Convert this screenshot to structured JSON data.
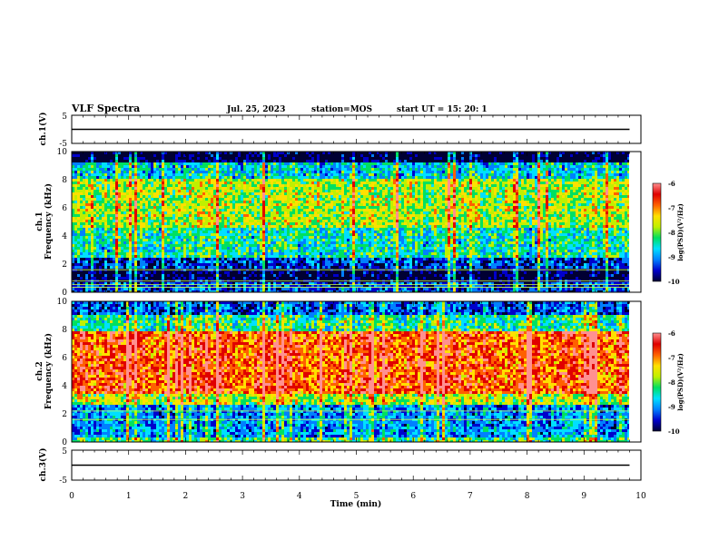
{
  "header": {
    "title": "VLF Spectra",
    "date": "Jul. 25, 2023",
    "station": "station=MOS",
    "start": "start UT =  15: 20: 1"
  },
  "colors": {
    "scale": [
      "#000033",
      "#0000cc",
      "#0080ff",
      "#00e0ff",
      "#00e060",
      "#c0f000",
      "#ffe000",
      "#ff6000",
      "#e00000",
      "#ff9090"
    ]
  },
  "chart_data": [
    {
      "type": "line",
      "ylabel": "ch.1(V)",
      "x": [
        0,
        9.8
      ],
      "y": [
        0,
        0
      ],
      "xlim": [
        0,
        10
      ],
      "ylim": [
        -5,
        5
      ],
      "yticks": [
        "5",
        "-5"
      ]
    },
    {
      "type": "heatmap",
      "ylabel": "ch.1\nFrequency (kHz)",
      "xlim": [
        0,
        9.8
      ],
      "ylim": [
        0,
        10
      ],
      "yticks": [
        "0",
        "2",
        "4",
        "6",
        "8",
        "10"
      ],
      "colorbar": {
        "label": "log(PSD)(V²/Hz)",
        "min": -10,
        "max": -6,
        "ticks": [
          "-6",
          "-7",
          "-8",
          "-9",
          "-10"
        ]
      },
      "bands": [
        {
          "from": 9.2,
          "to": 10,
          "level": -9.9
        },
        {
          "from": 8.0,
          "to": 9.2,
          "level": -8.6
        },
        {
          "from": 4.5,
          "to": 8.0,
          "level": -7.8
        },
        {
          "from": 2.5,
          "to": 4.5,
          "level": -8.4
        },
        {
          "from": 1.6,
          "to": 2.5,
          "level": -9.3
        },
        {
          "from": 0.8,
          "to": 1.6,
          "level": -9.8
        },
        {
          "from": 0,
          "to": 0.8,
          "level": -9.2
        }
      ],
      "lines_khz": [
        0.35,
        0.55,
        0.8,
        1.6
      ]
    },
    {
      "type": "heatmap",
      "ylabel": "ch.2\nFrequency (kHz)",
      "xlim": [
        0,
        9.8
      ],
      "ylim": [
        0,
        10
      ],
      "yticks": [
        "0",
        "2",
        "4",
        "6",
        "8",
        "10"
      ],
      "colorbar": {
        "label": "log(PSD)(V²/Hz)",
        "min": -10,
        "max": -6,
        "ticks": [
          "-6",
          "-7",
          "-8",
          "-9",
          "-10"
        ]
      },
      "bands": [
        {
          "from": 9.0,
          "to": 10,
          "level": -9.2
        },
        {
          "from": 7.8,
          "to": 9.0,
          "level": -8.3
        },
        {
          "from": 3.5,
          "to": 7.8,
          "level": -6.9
        },
        {
          "from": 2.6,
          "to": 3.5,
          "level": -7.8
        },
        {
          "from": 0.3,
          "to": 2.6,
          "level": -8.9
        },
        {
          "from": 0,
          "to": 0.3,
          "level": -8.2
        }
      ],
      "lines_khz": [
        1.6,
        2.2
      ]
    },
    {
      "type": "line",
      "ylabel": "ch.3(V)",
      "x": [
        0,
        9.8
      ],
      "y": [
        0,
        0
      ],
      "xlim": [
        0,
        10
      ],
      "ylim": [
        -5,
        5
      ],
      "yticks": [
        "5",
        "-5"
      ]
    }
  ],
  "xaxis": {
    "label": "Time (min)",
    "ticks": [
      "0",
      "1",
      "2",
      "3",
      "4",
      "5",
      "6",
      "7",
      "8",
      "9",
      "10"
    ]
  }
}
